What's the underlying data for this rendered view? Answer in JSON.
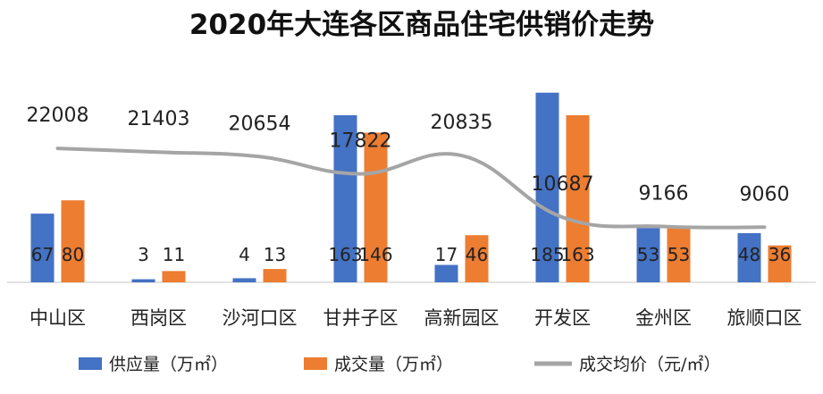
{
  "chart_data": {
    "type": "bar",
    "title": "2020年大连各区商品住宅供销价走势",
    "categories": [
      "中山区",
      "西岗区",
      "沙河口区",
      "甘井子区",
      "高新园区",
      "开发区",
      "金州区",
      "旅顺口区"
    ],
    "series": [
      {
        "name": "供应量（万㎡）",
        "kind": "bar",
        "color": "#4472C4",
        "values": [
          67,
          3,
          4,
          163,
          17,
          185,
          53,
          48
        ]
      },
      {
        "name": "成交量（万㎡）",
        "kind": "bar",
        "color": "#ED7D31",
        "values": [
          80,
          11,
          13,
          146,
          46,
          163,
          53,
          36
        ]
      },
      {
        "name": "成交均价（元/㎡）",
        "kind": "line",
        "smooth": true,
        "color": "#A5A5A5",
        "values": [
          22008,
          21403,
          20654,
          17822,
          20835,
          10687,
          9166,
          9060
        ]
      }
    ],
    "bar_ylim": [
      0,
      190
    ],
    "price_ylim": [
      0,
      32000
    ],
    "legend_position": "bottom",
    "grid": false
  }
}
